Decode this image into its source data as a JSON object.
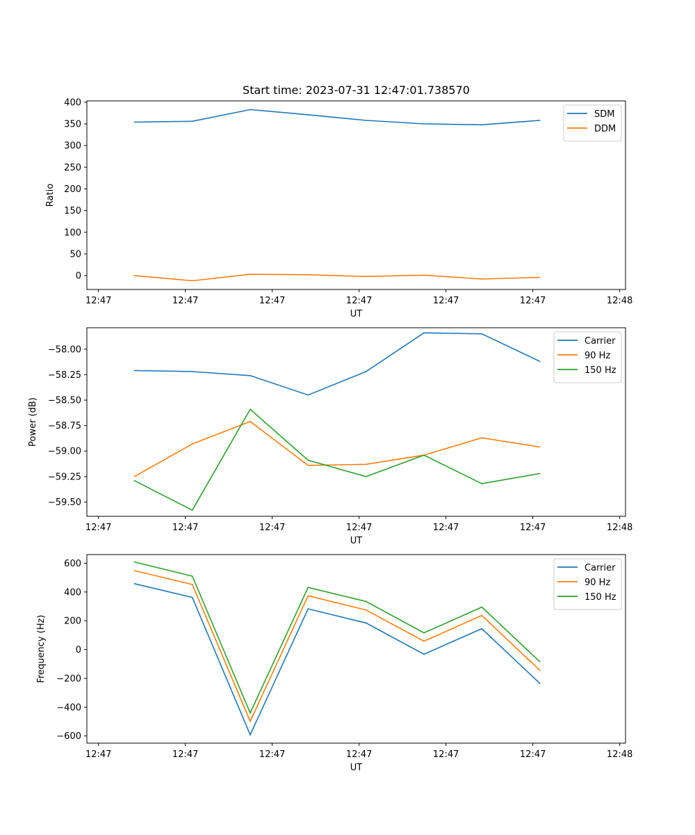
{
  "title": "Start time: 2023-07-31 12:47:01.738570",
  "chart_data": [
    {
      "type": "line",
      "xlabel": "UT",
      "ylabel": "Ratio",
      "x_tick_labels": [
        "12:47",
        "12:47",
        "12:47",
        "12:47",
        "12:47",
        "12:47",
        "12:48"
      ],
      "x": [
        0.62,
        1.62,
        2.62,
        3.62,
        4.62,
        5.62,
        6.62,
        7.62
      ],
      "xlim": [
        -0.2,
        9.1
      ],
      "x_ticks": [
        0,
        1.5,
        3,
        4.5,
        6,
        7.5,
        9
      ],
      "y_ticks": [
        0,
        50,
        100,
        150,
        200,
        250,
        300,
        350,
        400
      ],
      "ylim": [
        -32,
        403
      ],
      "legend": "upper-right",
      "series": [
        {
          "name": "SDM",
          "color": "#1f77b4",
          "values": [
            354,
            356,
            383,
            371,
            358,
            350,
            348,
            358
          ]
        },
        {
          "name": "DDM",
          "color": "#ff7f0e",
          "values": [
            0,
            -12,
            3,
            2,
            -2,
            1,
            -8,
            -4
          ]
        }
      ]
    },
    {
      "type": "line",
      "xlabel": "UT",
      "ylabel": "Power (dB)",
      "x_tick_labels": [
        "12:47",
        "12:47",
        "12:47",
        "12:47",
        "12:47",
        "12:47",
        "12:48"
      ],
      "x": [
        0.62,
        1.62,
        2.62,
        3.62,
        4.62,
        5.62,
        6.62,
        7.62
      ],
      "xlim": [
        -0.2,
        9.1
      ],
      "x_ticks": [
        0,
        1.5,
        3,
        4.5,
        6,
        7.5,
        9
      ],
      "y_ticks": [
        -59.5,
        -59.25,
        -59.0,
        -58.75,
        -58.5,
        -58.25,
        -58.0
      ],
      "y_tick_labels": [
        "−59.50",
        "−59.25",
        "−59.00",
        "−58.75",
        "−58.50",
        "−58.25",
        "−58.00"
      ],
      "ylim": [
        -59.64,
        -57.79
      ],
      "legend": "upper-right",
      "series": [
        {
          "name": "Carrier",
          "color": "#1f77b4",
          "values": [
            -58.21,
            -58.22,
            -58.26,
            -58.45,
            -58.22,
            -57.84,
            -57.85,
            -58.12
          ]
        },
        {
          "name": "90 Hz",
          "color": "#ff7f0e",
          "values": [
            -59.25,
            -58.93,
            -58.71,
            -59.14,
            -59.13,
            -59.04,
            -58.87,
            -58.96
          ]
        },
        {
          "name": "150 Hz",
          "color": "#2ca02c",
          "values": [
            -59.29,
            -59.58,
            -58.59,
            -59.09,
            -59.25,
            -59.04,
            -59.32,
            -59.22
          ]
        }
      ]
    },
    {
      "type": "line",
      "xlabel": "UT",
      "ylabel": "Frequency (Hz)",
      "x_tick_labels": [
        "12:47",
        "12:47",
        "12:47",
        "12:47",
        "12:47",
        "12:47",
        "12:48"
      ],
      "x": [
        0.62,
        1.62,
        2.62,
        3.62,
        4.62,
        5.62,
        6.62,
        7.62
      ],
      "xlim": [
        -0.2,
        9.1
      ],
      "x_ticks": [
        0,
        1.5,
        3,
        4.5,
        6,
        7.5,
        9
      ],
      "y_ticks": [
        -600,
        -400,
        -200,
        0,
        200,
        400,
        600
      ],
      "y_tick_labels": [
        "−600",
        "−400",
        "−200",
        "0",
        "200",
        "400",
        "600"
      ],
      "ylim": [
        -650,
        660
      ],
      "legend": "upper-right",
      "series": [
        {
          "name": "Carrier",
          "color": "#1f77b4",
          "values": [
            458,
            362,
            -592,
            283,
            185,
            -32,
            145,
            -235
          ]
        },
        {
          "name": "90 Hz",
          "color": "#ff7f0e",
          "values": [
            549,
            452,
            -498,
            374,
            275,
            58,
            237,
            -144
          ]
        },
        {
          "name": "150 Hz",
          "color": "#2ca02c",
          "values": [
            609,
            510,
            -440,
            432,
            334,
            116,
            295,
            -84
          ]
        }
      ]
    }
  ]
}
